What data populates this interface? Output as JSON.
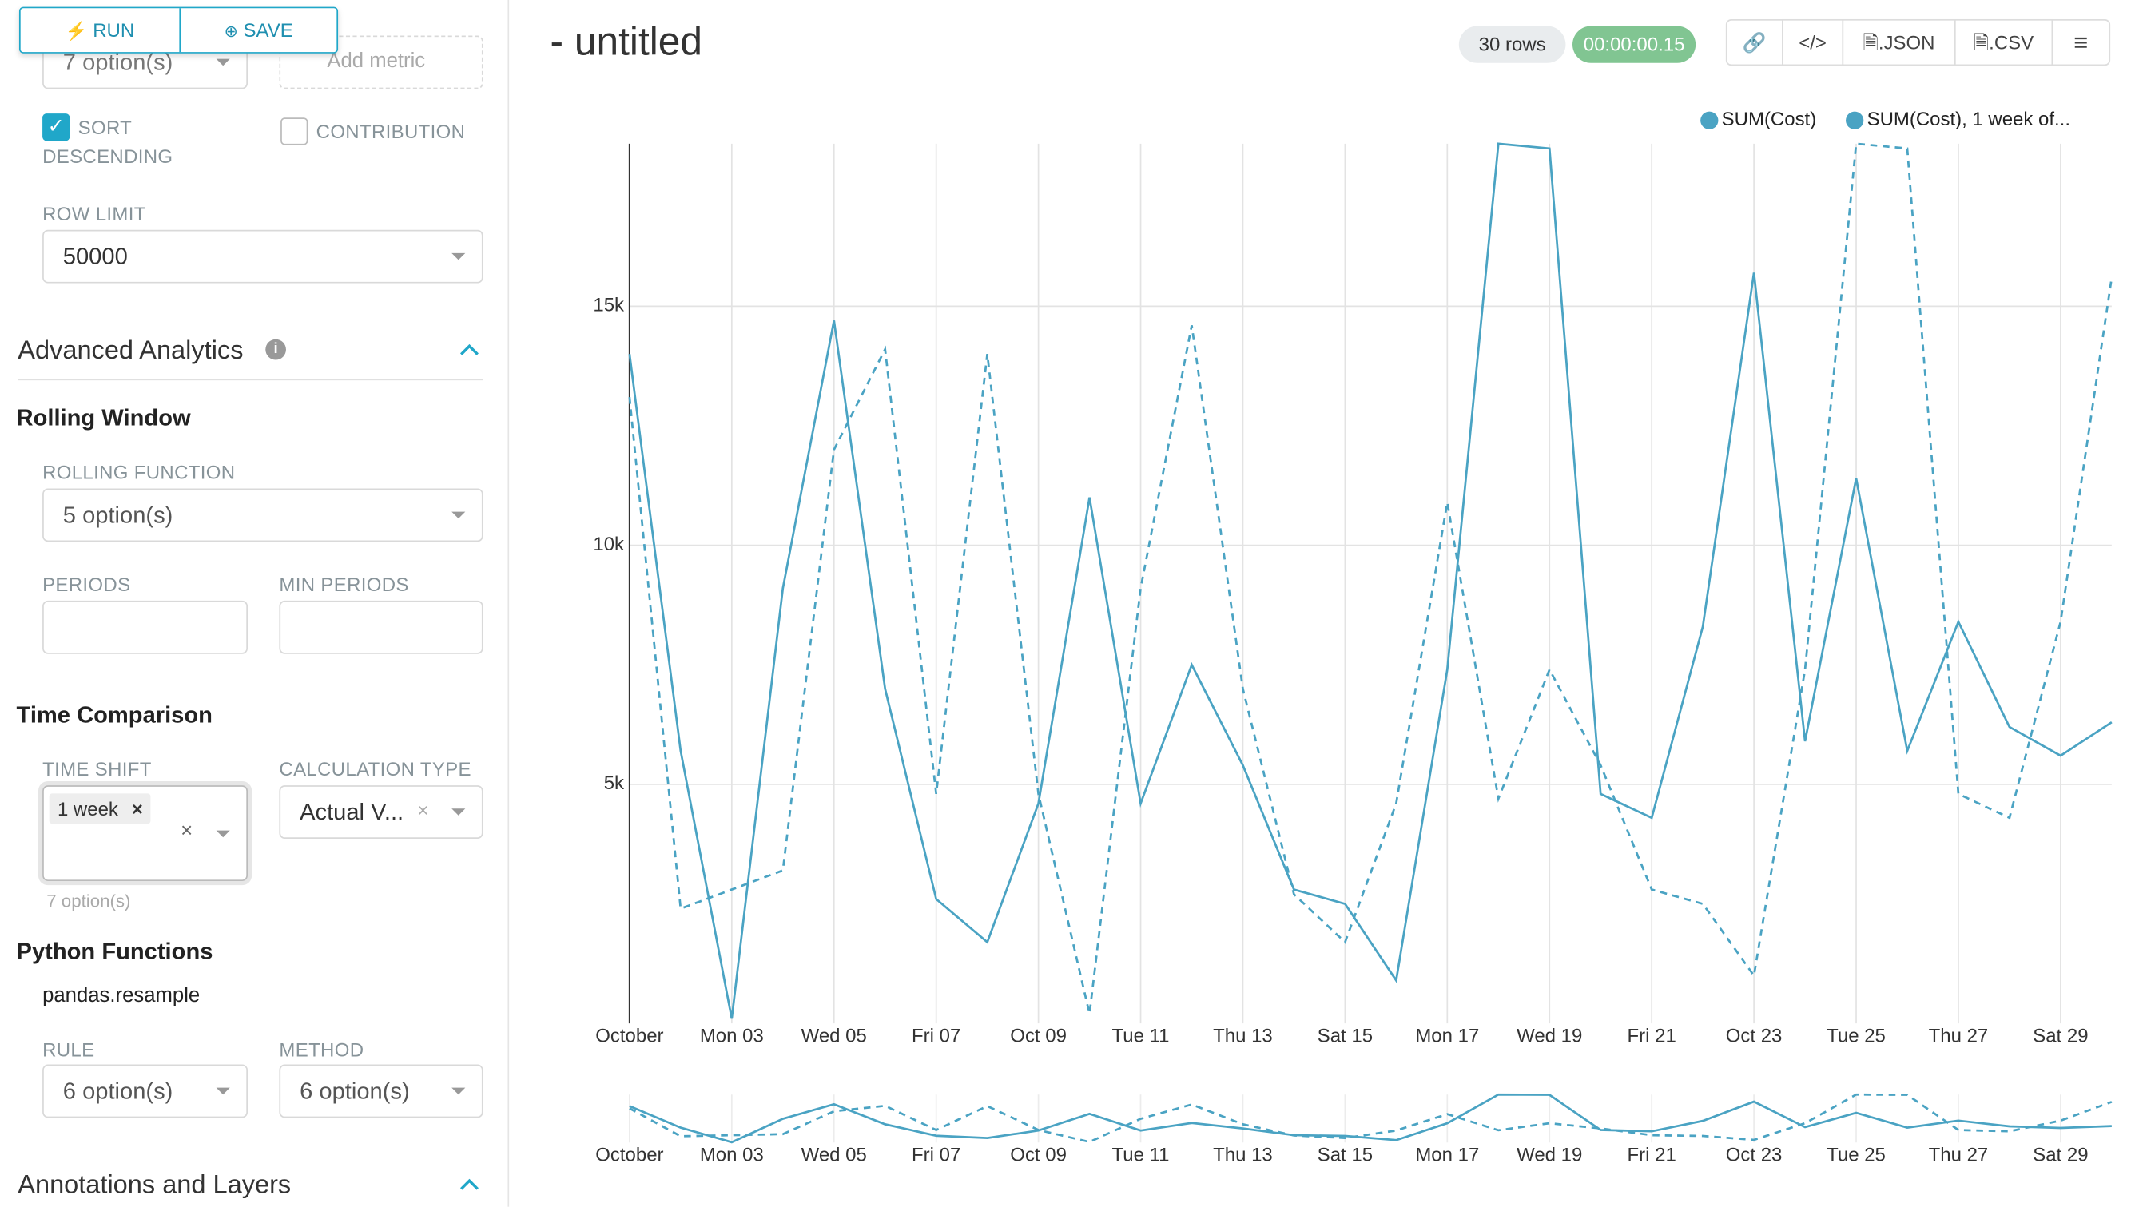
{
  "toolbar": {
    "run": "RUN",
    "save": "SAVE"
  },
  "sidebar": {
    "metrics_select": "7 option(s)",
    "add_metric": "Add metric",
    "sort_descending": "SORT DESCENDING",
    "contribution": "CONTRIBUTION",
    "row_limit_label": "ROW LIMIT",
    "row_limit": "50000",
    "advanced_analytics": "Advanced Analytics",
    "rolling_window": "Rolling Window",
    "rolling_function_label": "ROLLING FUNCTION",
    "rolling_function": "5 option(s)",
    "periods_label": "PERIODS",
    "min_periods_label": "MIN PERIODS",
    "time_comparison": "Time Comparison",
    "time_shift_label": "TIME SHIFT",
    "time_shift_value": "1 week",
    "time_shift_hint": "7 option(s)",
    "calculation_type_label": "CALCULATION TYPE",
    "calculation_type": "Actual V...",
    "python_functions": "Python Functions",
    "resample": "pandas.resample",
    "rule_label": "RULE",
    "method_label": "METHOD",
    "rule": "6 option(s)",
    "method": "6 option(s)",
    "annotations": "Annotations and Layers"
  },
  "header": {
    "title": "- untitled",
    "rows": "30 rows",
    "timer": "00:00:00.15",
    "json": ".JSON",
    "csv": ".CSV"
  },
  "chart_data": {
    "type": "line",
    "categories": [
      "October",
      null,
      "Mon 03",
      null,
      "Wed 05",
      null,
      "Fri 07",
      null,
      "Oct 09",
      null,
      "Tue 11",
      null,
      "Thu 13",
      null,
      "Sat 15",
      null,
      "Mon 17",
      null,
      "Wed 19",
      null,
      "Fri 21",
      null,
      "Oct 23",
      null,
      "Tue 25",
      null,
      "Thu 27",
      null,
      "Sat 29",
      null
    ],
    "series": [
      {
        "name": "SUM(Cost)",
        "color": "#4aa3c3",
        "dashed": false,
        "values": [
          14000,
          5700,
          100,
          9100,
          14700,
          7000,
          2600,
          1700,
          4600,
          11000,
          4600,
          7500,
          5400,
          2800,
          2500,
          900,
          7400,
          18400,
          18300,
          4800,
          4300,
          8300,
          15700,
          5900,
          11400,
          5700,
          8400,
          6200,
          5600,
          6300
        ]
      },
      {
        "name": "SUM(Cost), 1 week of...",
        "color": "#4aa3c3",
        "dashed": true,
        "values": [
          13100,
          2400,
          2800,
          3200,
          12000,
          14100,
          4800,
          14000,
          4800,
          200,
          9100,
          14600,
          7000,
          2700,
          1700,
          4600,
          10900,
          4700,
          7400,
          5400,
          2800,
          2500,
          1000,
          7400,
          18400,
          18300,
          4800,
          4300,
          8400,
          15600
        ]
      }
    ],
    "ylim": [
      0,
      18400
    ],
    "yticks": [
      {
        "value": 5000,
        "label": "5k"
      },
      {
        "value": 10000,
        "label": "10k"
      },
      {
        "value": 15000,
        "label": "15k"
      }
    ],
    "grid": true,
    "legend": "top-right"
  }
}
